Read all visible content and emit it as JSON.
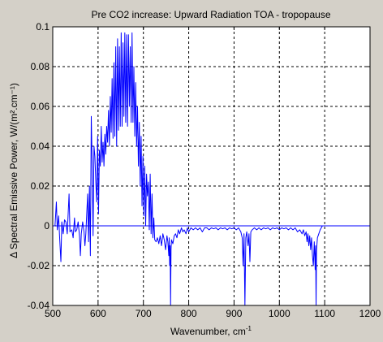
{
  "chart_data": {
    "type": "line",
    "title": "Pre CO2 increase: Upward Radiation TOA - tropopause",
    "xlabel": "Wavenumber, cm",
    "xlabel_sup": "-1",
    "ylabel": "Δ Spectral Emissive Power, W/(m².cm⁻¹)",
    "xlim": [
      500,
      1200
    ],
    "ylim": [
      -0.04,
      0.1
    ],
    "xticks": [
      500,
      600,
      700,
      800,
      900,
      1000,
      1100,
      1200
    ],
    "yticks": [
      -0.04,
      -0.02,
      0,
      0.02,
      0.04,
      0.06,
      0.08,
      0.1
    ],
    "grid": true,
    "line_color": "#0000ff",
    "background_color": "#d4d0c8",
    "series": [
      {
        "values": [
          [
            500,
            0
          ],
          [
            505,
            0
          ],
          [
            508,
            0.012
          ],
          [
            510,
            -0.002
          ],
          [
            513,
            0.005
          ],
          [
            515,
            -0.005
          ],
          [
            518,
            -0.018
          ],
          [
            520,
            0.002
          ],
          [
            523,
            -0.004
          ],
          [
            526,
            0.003
          ],
          [
            529,
            0.002
          ],
          [
            532,
            -0.004
          ],
          [
            536,
            0.016
          ],
          [
            538,
            -0.003
          ],
          [
            542,
            -0.002
          ],
          [
            545,
            -0.006
          ],
          [
            548,
            0.004
          ],
          [
            550,
            -0.003
          ],
          [
            553,
            -0.002
          ],
          [
            556,
            0.002
          ],
          [
            559,
            -0.005
          ],
          [
            561,
            -0.015
          ],
          [
            563,
            -0.004
          ],
          [
            566,
            0.002
          ],
          [
            569,
            -0.003
          ],
          [
            571,
            -0.01
          ],
          [
            573,
            -0.004
          ],
          [
            575,
            0.006
          ],
          [
            577,
            0.016
          ],
          [
            579,
            -0.008
          ],
          [
            581,
            0.02
          ],
          [
            583,
            -0.015
          ],
          [
            585,
            0.055
          ],
          [
            587,
            0.03
          ],
          [
            589,
            -0.005
          ],
          [
            591,
            0.04
          ],
          [
            593,
            0.035
          ],
          [
            595,
            0.022
          ],
          [
            597,
            0.012
          ],
          [
            599,
            0.045
          ],
          [
            601,
            0.006
          ],
          [
            603,
            0.038
          ],
          [
            605,
            0.03
          ],
          [
            607,
            0.05
          ],
          [
            609,
            0.032
          ],
          [
            611,
            0.042
          ],
          [
            613,
            0.03
          ],
          [
            615,
            0.046
          ],
          [
            617,
            0.036
          ],
          [
            619,
            0.05
          ],
          [
            621,
            0.042
          ],
          [
            623,
            0.058
          ],
          [
            625,
            0.04
          ],
          [
            627,
            0.065
          ],
          [
            629,
            0.047
          ],
          [
            631,
            0.074
          ],
          [
            633,
            0.044
          ],
          [
            635,
            0.082
          ],
          [
            637,
            0.045
          ],
          [
            639,
            0.09
          ],
          [
            641,
            0.04
          ],
          [
            643,
            0.094
          ],
          [
            645,
            0.048
          ],
          [
            647,
            0.09
          ],
          [
            649,
            0.05
          ],
          [
            651,
            0.097
          ],
          [
            653,
            0.05
          ],
          [
            655,
            0.092
          ],
          [
            657,
            0.055
          ],
          [
            659,
            0.097
          ],
          [
            661,
            0.052
          ],
          [
            663,
            0.096
          ],
          [
            665,
            0.05
          ],
          [
            667,
            0.096
          ],
          [
            669,
            0.06
          ],
          [
            671,
            0.09
          ],
          [
            673,
            0.052
          ],
          [
            675,
            0.097
          ],
          [
            677,
            0.052
          ],
          [
            679,
            0.08
          ],
          [
            681,
            0.045
          ],
          [
            683,
            0.072
          ],
          [
            685,
            0.04
          ],
          [
            687,
            0.06
          ],
          [
            689,
            0.03
          ],
          [
            691,
            0.052
          ],
          [
            693,
            0.02
          ],
          [
            695,
            0.045
          ],
          [
            697,
            0.01
          ],
          [
            699,
            0.035
          ],
          [
            701,
            0.005
          ],
          [
            703,
            0.03
          ],
          [
            705,
            0.0
          ],
          [
            707,
            0.026
          ],
          [
            709,
            0.015
          ],
          [
            711,
            0.022
          ],
          [
            713,
            -0.002
          ],
          [
            715,
            0.026
          ],
          [
            717,
            -0.004
          ],
          [
            719,
            0.016
          ],
          [
            721,
            -0.006
          ],
          [
            723,
            0.004
          ],
          [
            725,
            -0.007
          ],
          [
            728,
            -0.008
          ],
          [
            731,
            -0.006
          ],
          [
            734,
            -0.009
          ],
          [
            737,
            -0.005
          ],
          [
            740,
            -0.01
          ],
          [
            743,
            -0.004
          ],
          [
            746,
            -0.007
          ],
          [
            749,
            -0.012
          ],
          [
            752,
            -0.005
          ],
          [
            754,
            -0.008
          ],
          [
            756,
            -0.015
          ],
          [
            757,
            -0.006
          ],
          [
            758,
            -0.02
          ],
          [
            759,
            -0.01
          ],
          [
            760,
            -0.04
          ],
          [
            761,
            -0.012
          ],
          [
            762,
            -0.007
          ],
          [
            765,
            -0.009
          ],
          [
            768,
            -0.005
          ],
          [
            771,
            -0.004
          ],
          [
            774,
            -0.006
          ],
          [
            777,
            -0.002
          ],
          [
            780,
            -0.004
          ],
          [
            784,
            -0.001
          ],
          [
            787,
            -0.003
          ],
          [
            790,
            -0.002
          ],
          [
            794,
            -0.004
          ],
          [
            797,
            -0.001
          ],
          [
            800,
            -0.003
          ],
          [
            805,
            -0.001
          ],
          [
            810,
            -0.002
          ],
          [
            815,
            -0.001
          ],
          [
            820,
            -0.002
          ],
          [
            825,
            -0.001
          ],
          [
            830,
            -0.003
          ],
          [
            835,
            -0.001
          ],
          [
            840,
            -0.001
          ],
          [
            845,
            -0.002
          ],
          [
            850,
            -0.001
          ],
          [
            855,
            -0.0015
          ],
          [
            860,
            -0.001
          ],
          [
            865,
            -0.002
          ],
          [
            870,
            -0.001
          ],
          [
            875,
            -0.0015
          ],
          [
            880,
            -0.001
          ],
          [
            885,
            -0.002
          ],
          [
            890,
            -0.001
          ],
          [
            895,
            -0.0015
          ],
          [
            900,
            -0.001
          ],
          [
            905,
            -0.002
          ],
          [
            910,
            -0.001
          ],
          [
            915,
            -0.003
          ],
          [
            918,
            -0.006
          ],
          [
            920,
            -0.02
          ],
          [
            922,
            -0.004
          ],
          [
            924,
            -0.04
          ],
          [
            926,
            -0.006
          ],
          [
            928,
            -0.003
          ],
          [
            931,
            -0.01
          ],
          [
            933,
            -0.004
          ],
          [
            935,
            -0.018
          ],
          [
            937,
            -0.003
          ],
          [
            940,
            -0.002
          ],
          [
            945,
            -0.001
          ],
          [
            950,
            -0.002
          ],
          [
            955,
            -0.001
          ],
          [
            960,
            -0.002
          ],
          [
            965,
            -0.001
          ],
          [
            970,
            -0.0015
          ],
          [
            975,
            -0.001
          ],
          [
            980,
            -0.002
          ],
          [
            985,
            -0.001
          ],
          [
            990,
            -0.0015
          ],
          [
            995,
            -0.001
          ],
          [
            1000,
            -0.002
          ],
          [
            1005,
            -0.001
          ],
          [
            1010,
            -0.0015
          ],
          [
            1015,
            -0.001
          ],
          [
            1020,
            -0.002
          ],
          [
            1025,
            -0.001
          ],
          [
            1030,
            -0.002
          ],
          [
            1035,
            -0.001
          ],
          [
            1040,
            -0.003
          ],
          [
            1045,
            -0.002
          ],
          [
            1050,
            -0.004
          ],
          [
            1053,
            -0.002
          ],
          [
            1056,
            -0.005
          ],
          [
            1059,
            -0.003
          ],
          [
            1061,
            -0.008
          ],
          [
            1063,
            -0.004
          ],
          [
            1065,
            -0.01
          ],
          [
            1067,
            -0.005
          ],
          [
            1069,
            -0.012
          ],
          [
            1071,
            -0.006
          ],
          [
            1073,
            -0.015
          ],
          [
            1075,
            -0.02
          ],
          [
            1077,
            -0.008
          ],
          [
            1079,
            -0.022
          ],
          [
            1080,
            -0.01
          ],
          [
            1081,
            -0.04
          ],
          [
            1082,
            -0.012
          ],
          [
            1084,
            -0.006
          ],
          [
            1087,
            -0.004
          ],
          [
            1090,
            -0.002
          ],
          [
            1095,
            0
          ],
          [
            1100,
            0
          ],
          [
            1150,
            0
          ],
          [
            1200,
            0
          ]
        ]
      }
    ]
  }
}
